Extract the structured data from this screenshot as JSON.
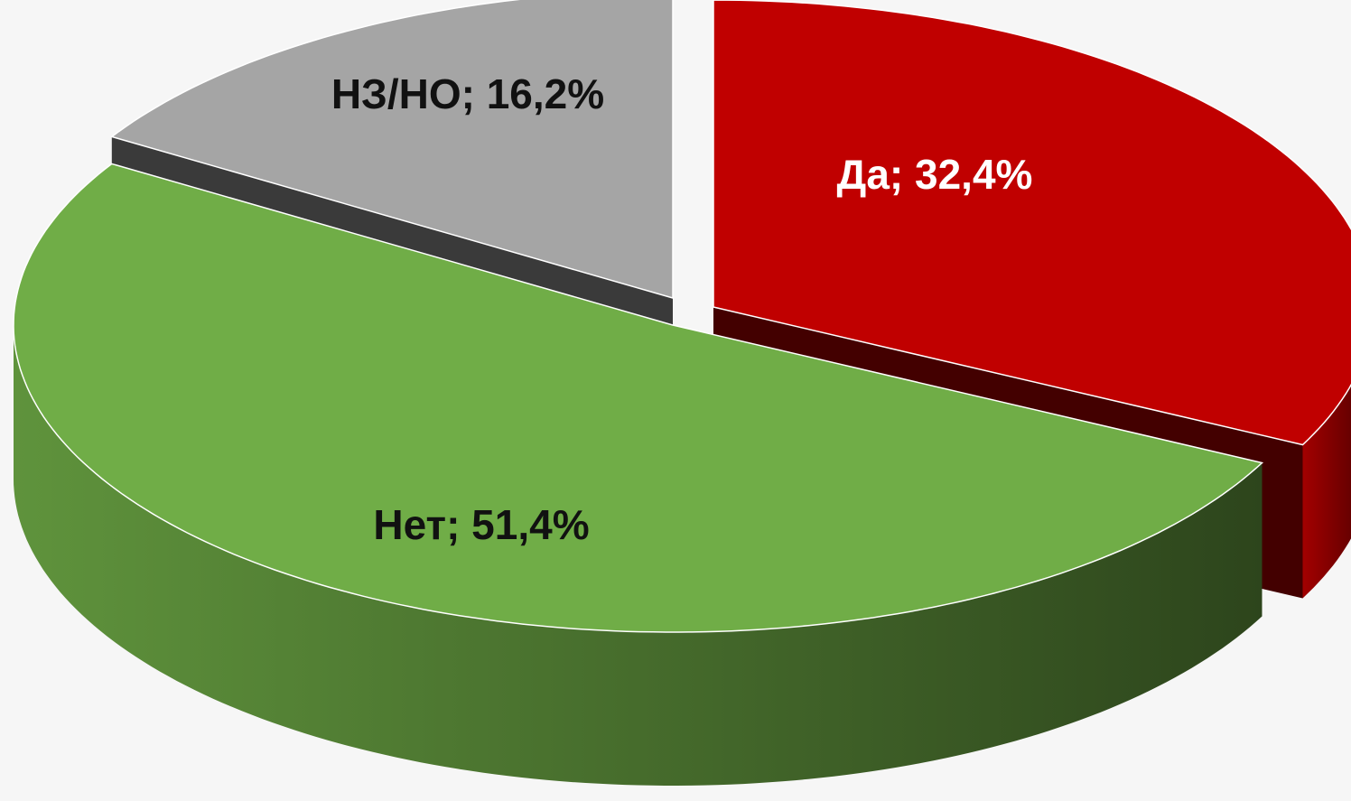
{
  "chart_data": {
    "type": "pie",
    "values": [
      32.4,
      51.4,
      16.2
    ],
    "value_labels": [
      "Да; 32,4%",
      "Нет; 51,4%",
      "НЗ/НО; 16,2%"
    ],
    "colors": [
      "#c00000",
      "#70ad47",
      "#a5a5a5"
    ]
  }
}
